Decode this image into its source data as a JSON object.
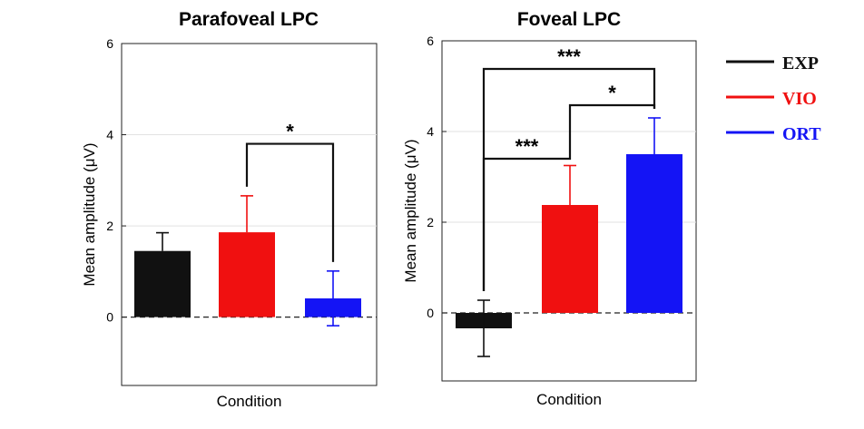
{
  "chart_data": [
    {
      "type": "bar",
      "title": "Parafoveal LPC",
      "xlabel": "Condition",
      "ylabel": "Mean amplitude (μV)",
      "ylim": [
        -1.5,
        6
      ],
      "yticks": [
        0,
        2,
        4,
        6
      ],
      "grid": "horizontal",
      "categories": [
        "EXP",
        "VIO",
        "ORT"
      ],
      "values": [
        1.45,
        1.86,
        0.41
      ],
      "errors": [
        0.4,
        0.8,
        0.6
      ],
      "error_direction": [
        "upper",
        "upper",
        "both"
      ],
      "colors": [
        "#111111",
        "#f01010",
        "#1414f5"
      ],
      "significance": [
        {
          "from": "VIO",
          "to": "ORT",
          "label": "*",
          "y": 3.8
        }
      ]
    },
    {
      "type": "bar",
      "title": "Foveal LPC",
      "xlabel": "Condition",
      "ylabel": "Mean amplitude (μV)",
      "ylim": [
        -1.5,
        6
      ],
      "yticks": [
        0,
        2,
        4,
        6
      ],
      "grid": "horizontal",
      "categories": [
        "EXP",
        "VIO",
        "ORT"
      ],
      "values": [
        -0.34,
        2.38,
        3.5
      ],
      "errors": [
        0.62,
        0.87,
        0.8
      ],
      "error_direction": [
        "both",
        "upper",
        "upper"
      ],
      "colors": [
        "#111111",
        "#f01010",
        "#1414f5"
      ],
      "significance": [
        {
          "from": "EXP",
          "to": "VIO",
          "label": "***",
          "y": 3.4
        },
        {
          "from": "VIO",
          "to": "ORT",
          "label": "*",
          "y": 4.58
        },
        {
          "from": "EXP",
          "to": "ORT",
          "label": "***",
          "y": 5.38
        }
      ]
    }
  ],
  "legend": {
    "placement": "right",
    "items": [
      {
        "label": "EXP",
        "color": "#111111"
      },
      {
        "label": "VIO",
        "color": "#f01010"
      },
      {
        "label": "ORT",
        "color": "#1414f5"
      }
    ]
  }
}
